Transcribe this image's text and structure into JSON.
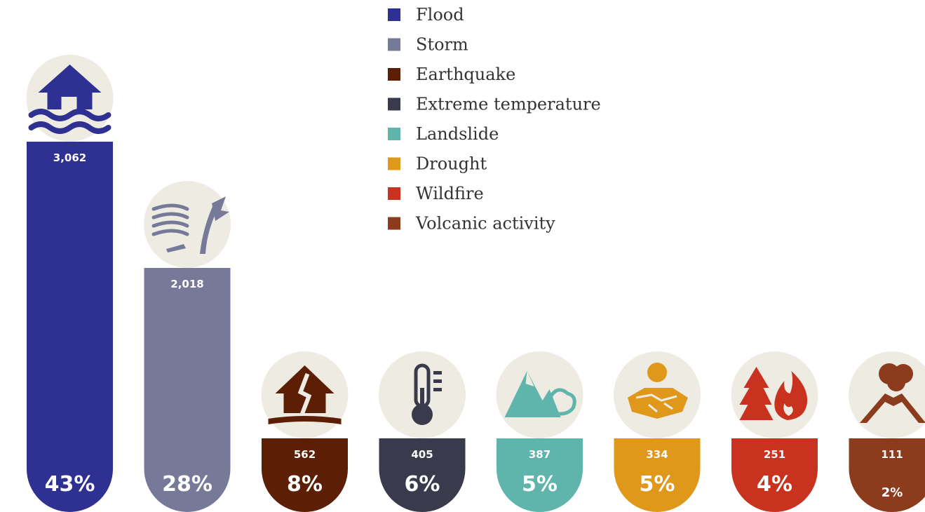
{
  "chart_data": {
    "type": "bar",
    "categories": [
      "Flood",
      "Storm",
      "Earthquake",
      "Extreme temperature",
      "Landslide",
      "Drought",
      "Wildfire",
      "Volcanic activity"
    ],
    "values": [
      3062,
      2018,
      562,
      405,
      387,
      334,
      251,
      111
    ],
    "value_labels": [
      "3,062",
      "2,018",
      "562",
      "405",
      "387",
      "334",
      "251",
      "111"
    ],
    "percent_labels": [
      "43%",
      "28%",
      "8%",
      "6%",
      "5%",
      "5%",
      "4%",
      "2%"
    ],
    "colors": [
      "#2e3192",
      "#767a98",
      "#5c1f05",
      "#393b4c",
      "#5fb4ac",
      "#e0981a",
      "#c8321e",
      "#8c3c1c"
    ],
    "icons": [
      "flood-house-icon",
      "storm-wind-icon",
      "earthquake-house-icon",
      "thermometer-icon",
      "landslide-mountain-icon",
      "drought-sun-icon",
      "wildfire-flame-icon",
      "volcano-icon"
    ],
    "legend_position": "top-center",
    "grid": false,
    "ylim": [
      0,
      3062
    ]
  }
}
